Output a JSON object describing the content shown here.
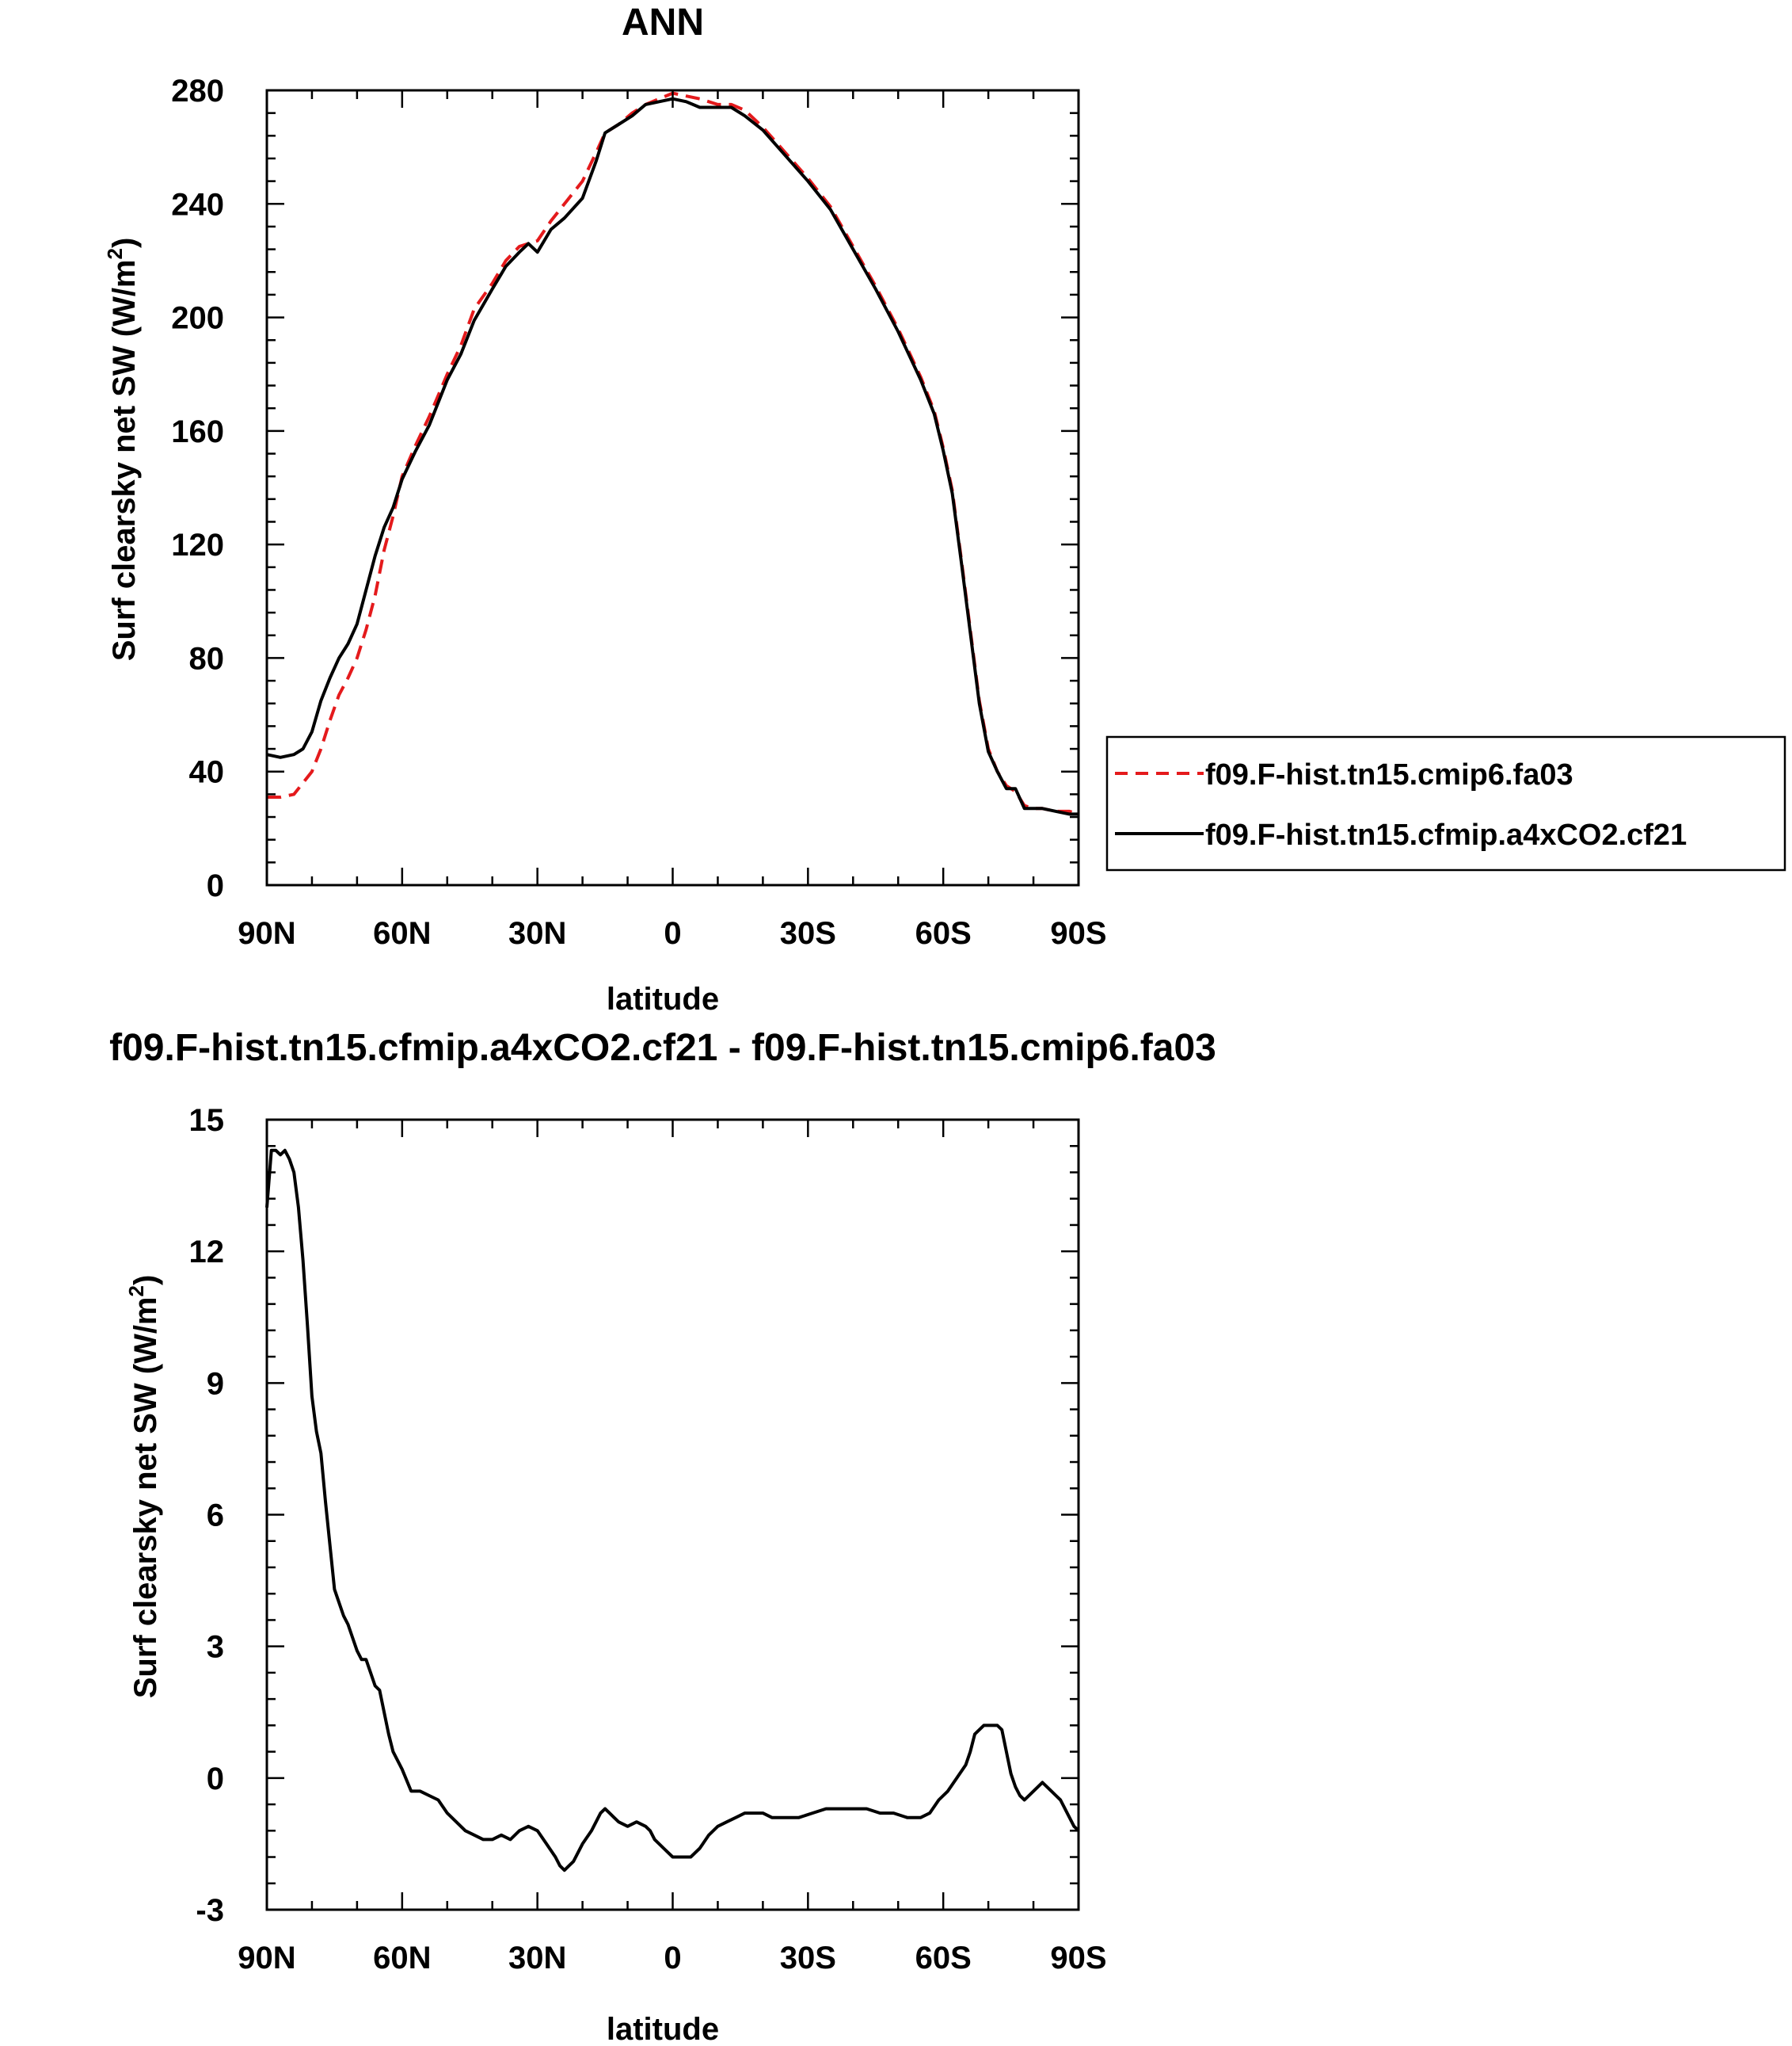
{
  "chart_data": [
    {
      "type": "line",
      "title": "ANN",
      "xlabel": "latitude",
      "ylabel": "Surf clearsky net SW (W/m",
      "ylabel_sup": "2",
      "ylabel_close": ")",
      "xlim": [
        90,
        -90
      ],
      "ylim": [
        0,
        280
      ],
      "xticks": [
        90,
        60,
        30,
        0,
        -30,
        -60,
        -90
      ],
      "xtick_labels": [
        "90N",
        "60N",
        "30N",
        "0",
        "30S",
        "60S",
        "90S"
      ],
      "yticks": [
        0,
        40,
        80,
        120,
        160,
        200,
        240,
        280
      ],
      "ytick_labels": [
        "0",
        "40",
        "80",
        "120",
        "160",
        "200",
        "240",
        "280"
      ],
      "legend_position": "right",
      "series": [
        {
          "name": "f09.F-hist.tn15.cmip6.fa03",
          "color": "#e41a1c",
          "dash": "dashed",
          "x": [
            90,
            87,
            84,
            82,
            80,
            78,
            76,
            74,
            72,
            70,
            68,
            66,
            64,
            62,
            60,
            57,
            54,
            50,
            47,
            44,
            40,
            37,
            34,
            32,
            30,
            27,
            24,
            20,
            17,
            15,
            12,
            9,
            6,
            3,
            0,
            -3,
            -6,
            -10,
            -13,
            -16,
            -20,
            -25,
            -30,
            -35,
            -40,
            -45,
            -50,
            -55,
            -58,
            -60,
            -62,
            -64,
            -66,
            -68,
            -70,
            -72,
            -74,
            -76,
            -78,
            -80,
            -82,
            -85,
            -88,
            -90
          ],
          "y": [
            31,
            31,
            32,
            36,
            40,
            48,
            58,
            67,
            73,
            80,
            90,
            102,
            118,
            130,
            144,
            155,
            165,
            180,
            190,
            203,
            212,
            220,
            225,
            226,
            227,
            234,
            240,
            248,
            258,
            265,
            268,
            272,
            275,
            277,
            279,
            278,
            277,
            275,
            275,
            273,
            267,
            258,
            249,
            239,
            225,
            211,
            196,
            179,
            167,
            154,
            139,
            115,
            90,
            65,
            48,
            40,
            35,
            33,
            28,
            27,
            27,
            26,
            26,
            25
          ]
        },
        {
          "name": "f09.F-hist.tn15.cfmip.a4xCO2.cf21",
          "color": "#000000",
          "dash": "solid",
          "x": [
            90,
            87,
            84,
            82,
            80,
            78,
            76,
            74,
            72,
            70,
            68,
            66,
            64,
            62,
            60,
            57,
            54,
            50,
            47,
            44,
            40,
            37,
            34,
            32,
            30,
            27,
            24,
            20,
            17,
            15,
            12,
            9,
            6,
            3,
            0,
            -3,
            -6,
            -10,
            -13,
            -16,
            -20,
            -25,
            -30,
            -35,
            -40,
            -45,
            -50,
            -55,
            -58,
            -60,
            -62,
            -64,
            -66,
            -68,
            -70,
            -72,
            -74,
            -76,
            -78,
            -80,
            -82,
            -85,
            -88,
            -90
          ],
          "y": [
            46,
            45,
            46,
            48,
            54,
            65,
            73,
            80,
            85,
            92,
            104,
            116,
            126,
            133,
            143,
            153,
            162,
            178,
            187,
            199,
            210,
            218,
            223,
            226,
            223,
            231,
            235,
            242,
            255,
            265,
            268,
            271,
            275,
            276,
            277,
            276,
            274,
            274,
            274,
            271,
            266,
            257,
            248,
            238,
            224,
            210,
            195,
            178,
            166,
            153,
            138,
            114,
            89,
            64,
            47,
            40,
            34,
            34,
            27,
            27,
            27,
            26,
            25,
            25
          ]
        }
      ]
    },
    {
      "type": "line",
      "title": "f09.F-hist.tn15.cfmip.a4xCO2.cf21 - f09.F-hist.tn15.cmip6.fa03",
      "xlabel": "latitude",
      "ylabel": "Surf clearsky net SW (W/m",
      "ylabel_sup": "2",
      "ylabel_close": ")",
      "xlim": [
        90,
        -90
      ],
      "ylim": [
        -3,
        15
      ],
      "xticks": [
        90,
        60,
        30,
        0,
        -30,
        -60,
        -90
      ],
      "xtick_labels": [
        "90N",
        "60N",
        "30N",
        "0",
        "30S",
        "60S",
        "90S"
      ],
      "yticks": [
        -3,
        0,
        3,
        6,
        9,
        12,
        15
      ],
      "ytick_labels": [
        "-3",
        "0",
        "3",
        "6",
        "9",
        "12",
        "15"
      ],
      "series": [
        {
          "color": "#000000",
          "dash": "solid",
          "x": [
            90,
            89,
            88,
            87,
            86,
            85,
            84,
            83,
            82,
            81,
            80,
            79,
            78,
            77,
            76,
            75,
            74,
            73,
            72,
            71,
            70,
            69,
            68,
            67,
            66,
            65,
            64,
            63,
            62,
            61,
            60,
            58,
            56,
            54,
            52,
            50,
            48,
            46,
            44,
            42,
            40,
            38,
            36,
            34,
            32,
            30,
            28,
            26,
            25,
            24,
            23,
            22,
            20,
            18,
            16,
            15,
            14,
            13,
            12,
            10,
            8,
            6,
            5,
            4,
            2,
            0,
            -2,
            -4,
            -6,
            -8,
            -10,
            -12,
            -14,
            -16,
            -18,
            -20,
            -22,
            -25,
            -28,
            -31,
            -34,
            -37,
            -40,
            -43,
            -46,
            -49,
            -52,
            -55,
            -57,
            -59,
            -61,
            -63,
            -65,
            -66,
            -67,
            -68,
            -69,
            -70,
            -71,
            -72,
            -73,
            -74,
            -75,
            -76,
            -77,
            -78,
            -80,
            -82,
            -83,
            -84,
            -85,
            -86,
            -87,
            -88,
            -89,
            -90
          ],
          "y": [
            13.0,
            14.3,
            14.3,
            14.2,
            14.3,
            14.1,
            13.8,
            13.0,
            11.8,
            10.3,
            8.7,
            7.9,
            7.4,
            6.3,
            5.3,
            4.3,
            4.0,
            3.7,
            3.5,
            3.2,
            2.9,
            2.7,
            2.7,
            2.4,
            2.1,
            2.0,
            1.5,
            1.0,
            0.6,
            0.4,
            0.2,
            -0.3,
            -0.3,
            -0.4,
            -0.5,
            -0.8,
            -1.0,
            -1.2,
            -1.3,
            -1.4,
            -1.4,
            -1.3,
            -1.4,
            -1.2,
            -1.1,
            -1.2,
            -1.5,
            -1.8,
            -2.0,
            -2.1,
            -2.0,
            -1.9,
            -1.5,
            -1.2,
            -0.8,
            -0.7,
            -0.8,
            -0.9,
            -1.0,
            -1.1,
            -1.0,
            -1.1,
            -1.2,
            -1.4,
            -1.6,
            -1.8,
            -1.8,
            -1.8,
            -1.6,
            -1.3,
            -1.1,
            -1.0,
            -0.9,
            -0.8,
            -0.8,
            -0.8,
            -0.9,
            -0.9,
            -0.9,
            -0.8,
            -0.7,
            -0.7,
            -0.7,
            -0.7,
            -0.8,
            -0.8,
            -0.9,
            -0.9,
            -0.8,
            -0.5,
            -0.3,
            0.0,
            0.3,
            0.6,
            1.0,
            1.1,
            1.2,
            1.2,
            1.2,
            1.2,
            1.1,
            0.6,
            0.1,
            -0.2,
            -0.4,
            -0.5,
            -0.3,
            -0.1,
            -0.2,
            -0.3,
            -0.4,
            -0.5,
            -0.7,
            -0.9,
            -1.1,
            -1.2
          ]
        }
      ]
    }
  ]
}
